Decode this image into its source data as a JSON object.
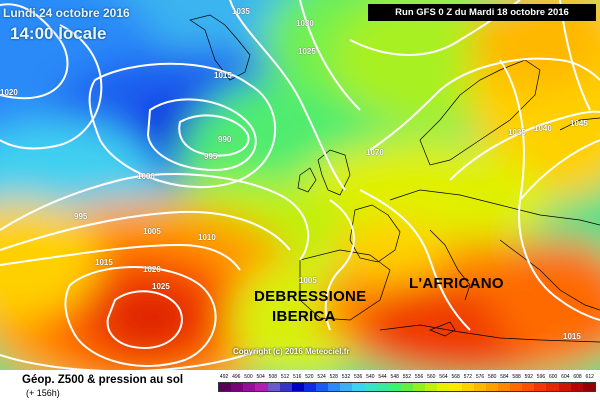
{
  "header": {
    "date": "Lundi 24 octobre 2016",
    "local_time": "14:00 locale",
    "run": "Run GFS 0 Z du Mardi 18 octobre 2016"
  },
  "annotations": {
    "debressione": "DEBRESSIONE",
    "iberica": "IBERICA",
    "africano": "L'AFRICANO"
  },
  "copyright": "Copyright (c) 2016 Meteociel.fr",
  "isobars": [
    "1035",
    "1030",
    "1025",
    "1015",
    "1020",
    "990",
    "995",
    "1000",
    "995",
    "1005",
    "1010",
    "1015",
    "1020",
    "1025",
    "1070",
    "1035",
    "1040",
    "1045",
    "1005",
    "1015"
  ],
  "legend": {
    "title": "Géop. Z500 & pression au sol",
    "subtitle": "(+ 156h)",
    "ticks": [
      "492",
      "496",
      "500",
      "504",
      "508",
      "512",
      "516",
      "520",
      "524",
      "528",
      "532",
      "536",
      "540",
      "544",
      "548",
      "552",
      "556",
      "560",
      "564",
      "568",
      "572",
      "576",
      "580",
      "584",
      "588",
      "592",
      "596",
      "600",
      "604",
      "608",
      "612"
    ],
    "colors": [
      "#5a005a",
      "#7a007a",
      "#9a0d9a",
      "#b21eb2",
      "#6a5acd",
      "#3434c8",
      "#0000c0",
      "#0d2ee0",
      "#1b5cf0",
      "#2a8af8",
      "#3ab0f8",
      "#40d0f0",
      "#3ee0c8",
      "#3ce8a0",
      "#40f070",
      "#60f040",
      "#90f020",
      "#c0f010",
      "#e8f000",
      "#ffe800",
      "#ffd000",
      "#ffb800",
      "#ffa000",
      "#ff8800",
      "#ff6a00",
      "#ff5000",
      "#f03a00",
      "#e02a00",
      "#cc1800",
      "#b00800",
      "#900000"
    ]
  }
}
